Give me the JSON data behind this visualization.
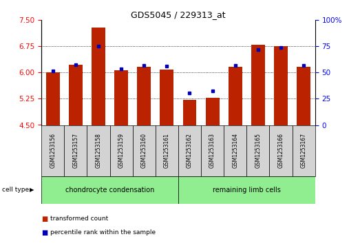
{
  "title": "GDS5045 / 229313_at",
  "samples": [
    "GSM1253156",
    "GSM1253157",
    "GSM1253158",
    "GSM1253159",
    "GSM1253160",
    "GSM1253161",
    "GSM1253162",
    "GSM1253163",
    "GSM1253164",
    "GSM1253165",
    "GSM1253166",
    "GSM1253167"
  ],
  "red_values": [
    6.0,
    6.22,
    7.28,
    6.07,
    6.17,
    6.08,
    5.22,
    5.28,
    6.17,
    6.8,
    6.75,
    6.17
  ],
  "blue_values": [
    6.05,
    6.22,
    6.75,
    6.1,
    6.2,
    6.18,
    5.42,
    5.47,
    6.2,
    6.65,
    6.72,
    6.2
  ],
  "ymin": 4.5,
  "ymax": 7.5,
  "yticks": [
    4.5,
    5.25,
    6.0,
    6.75,
    7.5
  ],
  "y2min": 0,
  "y2max": 100,
  "y2ticks": [
    0,
    25,
    50,
    75,
    100
  ],
  "bar_color": "#bb2200",
  "dot_color": "#0000bb",
  "group1_label": "chondrocyte condensation",
  "group2_label": "remaining limb cells",
  "group_color": "#90ee90",
  "legend_red": "transformed count",
  "legend_blue": "percentile rank within the sample",
  "cell_type_label": "cell type",
  "bar_width": 0.6,
  "sample_box_color": "#d3d3d3"
}
